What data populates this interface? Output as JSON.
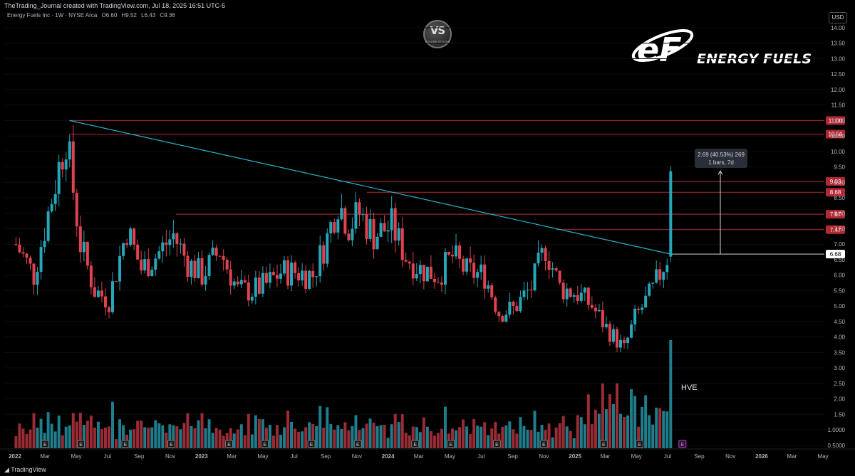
{
  "header": {
    "attribution": "TheTrading_Journal created with TradingView.com, Jul 18, 2025 16:51 UTC-5",
    "symbol_line": "Energy Fuels Inc · 1W · NYSE Arca",
    "open": "O6.60",
    "high": "H9.52",
    "low": "L6.43",
    "close": "C9.36",
    "currency_button": "USD"
  },
  "watermark": {
    "label": "VS",
    "sublabel": "VOLUME STOCKS"
  },
  "brand": {
    "name": "ENERGY FUELS",
    "mark": "eF"
  },
  "footer": {
    "platform": "TradingView"
  },
  "colors": {
    "up": "#26a6b8",
    "down": "#e0424f",
    "trendline": "#26b6c8",
    "level": "#b22833",
    "up_volume": "#1f7d8c",
    "down_volume": "#9b2b35",
    "earnings": "#b043d1"
  },
  "chart_data": {
    "type": "candlestick",
    "title": "Energy Fuels Inc · 1W · NYSE Arca",
    "y_scale": "log",
    "ylim": [
      0.5,
      14
    ],
    "y_ticks": [
      "14.00",
      "13.50",
      "13.00",
      "12.50",
      "12.00",
      "11.50",
      "11.00",
      "10.50",
      "10.00",
      "9.50",
      "9.00",
      "8.50",
      "8.00",
      "7.50",
      "7.00",
      "6.50",
      "6.00",
      "5.50",
      "5.00",
      "4.50",
      "4.00",
      "3.50",
      "3.00",
      "2.50",
      "2.00",
      "1.50",
      "1.0000",
      "0.5000"
    ],
    "x_ticks": [
      "2022",
      "Mar",
      "May",
      "Jul",
      "Sep",
      "Nov",
      "2023",
      "Mar",
      "May",
      "Jul",
      "Sep",
      "Nov",
      "2024",
      "Mar",
      "May",
      "Jul",
      "Sep",
      "Nov",
      "2025",
      "Mar",
      "May",
      "Jul",
      "Sep",
      "Nov",
      "2026",
      "Mar",
      "May"
    ],
    "price_levels": [
      {
        "label": "11.00",
        "value": 11.0
      },
      {
        "label": "10.56",
        "value": 10.56
      },
      {
        "label": "9.03",
        "value": 9.03
      },
      {
        "label": "8.68",
        "value": 8.68
      },
      {
        "label": "7.97",
        "value": 7.97
      },
      {
        "label": "7.47",
        "value": 7.47
      },
      {
        "label": "6.68",
        "value": 6.68
      }
    ],
    "trendline": {
      "from": {
        "date": "2022-04-18",
        "price": 11.0
      },
      "to": {
        "date": "2025-07-07",
        "price": 6.68
      }
    },
    "measure": {
      "line1": "2.69 (40.53%) 269",
      "line2": "1 bars, 7d",
      "from_price": 6.68,
      "to_price": 9.37
    },
    "annotation": "HVE",
    "last_close": 9.36,
    "earnings_markers": [
      "E"
    ],
    "anchor_points": [
      [
        "2022-01-03",
        7.0
      ],
      [
        "2022-02-07",
        6.0
      ],
      [
        "2022-03-14",
        8.5
      ],
      [
        "2022-04-11",
        10.5
      ],
      [
        "2022-05-09",
        7.0
      ],
      [
        "2022-06-06",
        5.5
      ],
      [
        "2022-07-04",
        5.2
      ],
      [
        "2022-08-08",
        7.5
      ],
      [
        "2022-09-05",
        6.2
      ],
      [
        "2022-10-03",
        6.6
      ],
      [
        "2022-11-07",
        7.3
      ],
      [
        "2022-12-05",
        6.4
      ],
      [
        "2023-01-02",
        6.0
      ],
      [
        "2023-02-06",
        6.8
      ],
      [
        "2023-03-13",
        5.5
      ],
      [
        "2023-04-10",
        5.5
      ],
      [
        "2023-05-08",
        5.7
      ],
      [
        "2023-06-05",
        6.1
      ],
      [
        "2023-07-03",
        6.1
      ],
      [
        "2023-08-07",
        6.0
      ],
      [
        "2023-09-04",
        7.2
      ],
      [
        "2023-09-25",
        8.4
      ],
      [
        "2023-10-16",
        7.6
      ],
      [
        "2023-11-06",
        8.0
      ],
      [
        "2023-12-04",
        7.3
      ],
      [
        "2024-01-08",
        7.6
      ],
      [
        "2024-02-05",
        6.6
      ],
      [
        "2024-03-04",
        6.2
      ],
      [
        "2024-04-08",
        6.0
      ],
      [
        "2024-05-06",
        6.6
      ],
      [
        "2024-06-03",
        6.1
      ],
      [
        "2024-07-08",
        6.0
      ],
      [
        "2024-08-05",
        4.8
      ],
      [
        "2024-09-02",
        4.9
      ],
      [
        "2024-10-07",
        5.6
      ],
      [
        "2024-11-04",
        6.9
      ],
      [
        "2024-12-02",
        5.6
      ],
      [
        "2025-01-06",
        5.4
      ],
      [
        "2025-02-03",
        5.0
      ],
      [
        "2025-03-03",
        4.3
      ],
      [
        "2025-04-07",
        3.6
      ],
      [
        "2025-04-28",
        4.6
      ],
      [
        "2025-06-02",
        5.5
      ],
      [
        "2025-06-30",
        6.6
      ],
      [
        "2025-07-07",
        9.36
      ]
    ],
    "volume_scale": "relative"
  }
}
